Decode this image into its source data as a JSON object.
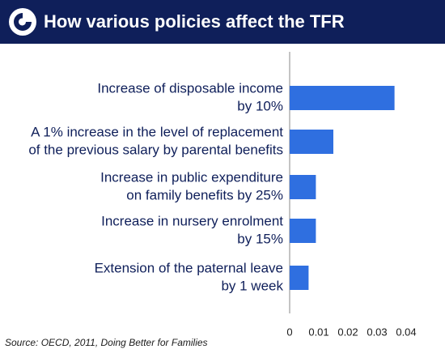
{
  "header": {
    "title": "How various policies affect the TFR",
    "logo_icon": "circular-arrow-logo-icon"
  },
  "colors": {
    "header_bg": "#0f1f5a",
    "bar": "#2f6fe0",
    "label_text": "#0f1f5a",
    "axis": "#888888"
  },
  "chart_data": {
    "type": "bar",
    "orientation": "horizontal",
    "title": "How various policies affect the TFR",
    "categories": [
      [
        "Increase of disposable income",
        "by 10%"
      ],
      [
        "A 1% increase in the level of replacement",
        "of the previous salary by parental benefits"
      ],
      [
        "Increase in public expenditure",
        "on family benefits by 25%"
      ],
      [
        "Increase in nursery enrolment",
        "by 15%"
      ],
      [
        "Extension of the paternal leave",
        "by 1 week"
      ]
    ],
    "values": [
      0.036,
      0.015,
      0.009,
      0.009,
      0.0065
    ],
    "xlim": [
      0,
      0.04
    ],
    "xticks": [
      0,
      0.01,
      0.02,
      0.03,
      0.04
    ],
    "xtick_labels": [
      "0",
      "0.01",
      "0.02",
      "0.03",
      "0.04"
    ],
    "xlabel": "",
    "ylabel": "",
    "grid": false,
    "legend": "none"
  },
  "source": "Source: OECD, 2011, Doing Better for Families"
}
